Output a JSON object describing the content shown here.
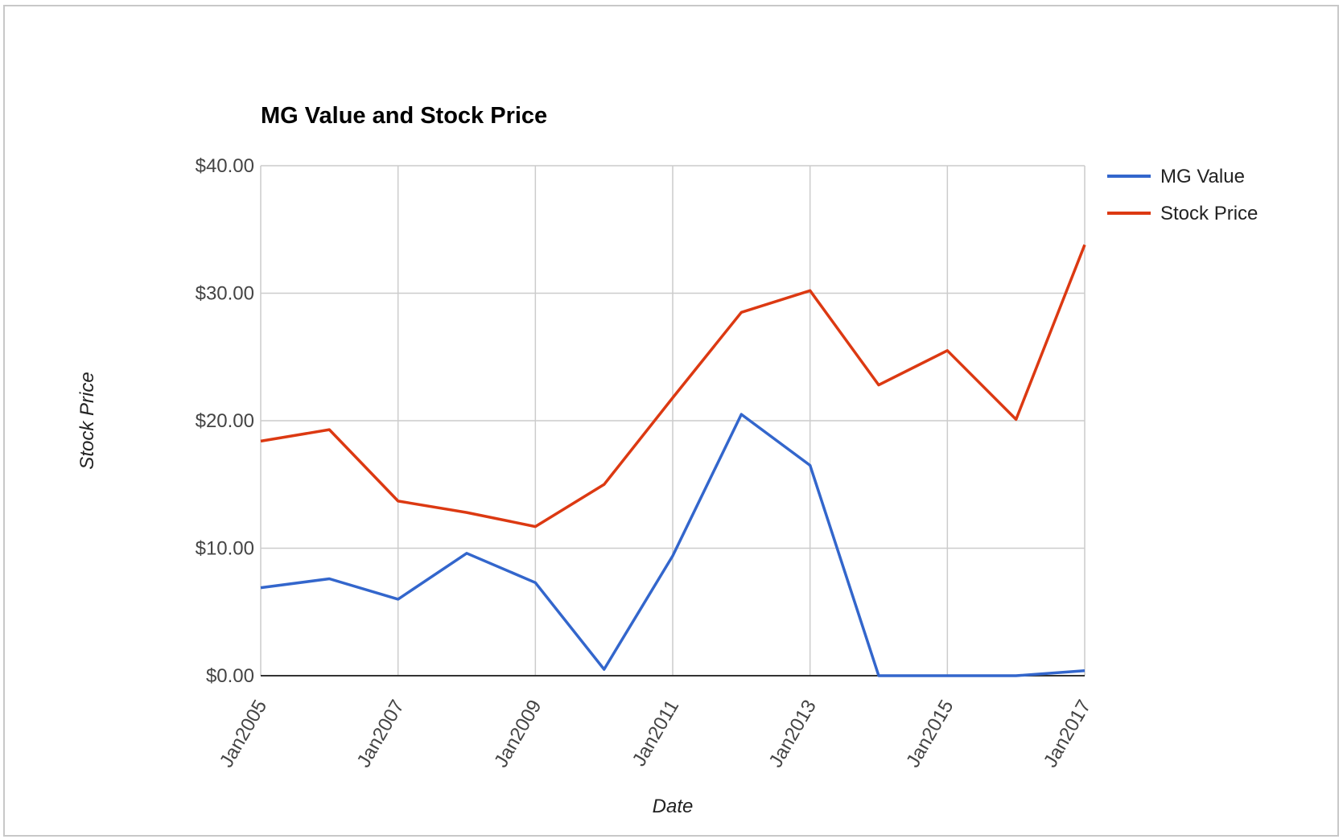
{
  "chart_data": {
    "type": "line",
    "title": "MG Value and Stock Price",
    "xlabel": "Date",
    "ylabel": "Stock Price",
    "x": [
      "2005-01",
      "2006-01",
      "2007-01",
      "2008-01",
      "2009-01",
      "2010-01",
      "2011-01",
      "2012-01",
      "2013-01",
      "2014-01",
      "2015-01",
      "2016-01",
      "2017-01"
    ],
    "x_tick_labels": [
      "Jan2005",
      "Jan2007",
      "Jan2009",
      "Jan2011",
      "Jan2013",
      "Jan2015",
      "Jan2017"
    ],
    "ylim": [
      0,
      40
    ],
    "y_ticks": [
      0,
      10,
      20,
      30,
      40
    ],
    "y_tick_labels": [
      "$0.00",
      "$10.00",
      "$20.00",
      "$30.00",
      "$40.00"
    ],
    "grid": true,
    "legend_position": "right",
    "series": [
      {
        "name": "MG Value",
        "color": "#3366cc",
        "values": [
          6.9,
          7.6,
          6.0,
          9.6,
          7.3,
          0.5,
          9.4,
          20.5,
          16.5,
          0.0,
          0.0,
          0.0,
          0.4
        ]
      },
      {
        "name": "Stock Price",
        "color": "#dc3912",
        "values": [
          18.4,
          19.3,
          13.7,
          12.8,
          11.7,
          15.0,
          21.8,
          28.5,
          30.2,
          22.8,
          25.5,
          20.1,
          33.8
        ]
      }
    ]
  }
}
